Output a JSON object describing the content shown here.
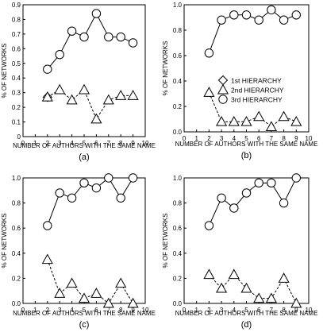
{
  "chart_data": [
    {
      "type": "line",
      "panel_label": "(a)",
      "xlabel": "NUMBER OF AUTHORS WITH THE SAME NAME",
      "ylabel": "% OF NETWORKS",
      "xlim": [
        0,
        10
      ],
      "ylim": [
        0,
        0.9
      ],
      "xticks": [
        0,
        1,
        2,
        3,
        4,
        5,
        6,
        7,
        8,
        9,
        10
      ],
      "yticks": [
        0,
        0.1,
        0.2,
        0.3,
        0.4,
        0.5,
        0.6,
        0.7,
        0.8,
        0.9
      ],
      "ytick_labels": [
        "0",
        "0.1",
        "0.2",
        "0.3",
        "0.4",
        "0.5",
        "0.6",
        "0.7",
        "0.8",
        "0.9"
      ],
      "series": [
        {
          "marker": "diamond",
          "line": "none",
          "x": [
            2
          ],
          "y": [
            0.27
          ]
        },
        {
          "marker": "triangle",
          "line": "dashed",
          "x": [
            2,
            3,
            4,
            5,
            6,
            7,
            8,
            9
          ],
          "y": [
            0.27,
            0.32,
            0.25,
            0.32,
            0.12,
            0.25,
            0.28,
            0.28
          ]
        },
        {
          "marker": "circle",
          "line": "solid",
          "x": [
            2,
            3,
            4,
            5,
            6,
            7,
            8,
            9
          ],
          "y": [
            0.46,
            0.56,
            0.72,
            0.68,
            0.84,
            0.68,
            0.68,
            0.64
          ]
        }
      ]
    },
    {
      "type": "line",
      "panel_label": "(b)",
      "xlabel": "NUMBER OF AUTHORS WITH THE SAME NAME",
      "ylabel": "% OF NETWORKS",
      "xlim": [
        0,
        10
      ],
      "ylim": [
        0,
        1.0
      ],
      "xticks": [
        0,
        1,
        2,
        3,
        4,
        5,
        6,
        7,
        8,
        9,
        10
      ],
      "yticks": [
        0,
        0.2,
        0.4,
        0.6,
        0.8,
        1.0
      ],
      "ytick_labels": [
        "0.0",
        "0.2",
        "0.4",
        "0.6",
        "0.8",
        "1.0"
      ],
      "legend": {
        "placement": "middle-right",
        "entries": [
          {
            "marker": "diamond",
            "label": "1st HIERARCHY"
          },
          {
            "marker": "triangle",
            "label": "2nd HIERARCHY"
          },
          {
            "marker": "circle",
            "label": "3rd HIERARCHY"
          }
        ]
      },
      "series": [
        {
          "marker": "diamond",
          "line": "none",
          "x": [],
          "y": []
        },
        {
          "marker": "triangle",
          "line": "dashed",
          "x": [
            2,
            3,
            4,
            5,
            6,
            7,
            8,
            9
          ],
          "y": [
            0.31,
            0.08,
            0.08,
            0.08,
            0.12,
            0.04,
            0.12,
            0.08
          ]
        },
        {
          "marker": "circle",
          "line": "solid",
          "x": [
            2,
            3,
            4,
            5,
            6,
            7,
            8,
            9
          ],
          "y": [
            0.62,
            0.88,
            0.92,
            0.92,
            0.88,
            0.96,
            0.88,
            0.92
          ]
        }
      ]
    },
    {
      "type": "line",
      "panel_label": "(c)",
      "xlabel": "NUMBER OF AUTHORS WITH THE SAME NAME",
      "ylabel": "% OF NETWORKS",
      "xlim": [
        0,
        10
      ],
      "ylim": [
        0,
        1.0
      ],
      "xticks": [
        0,
        1,
        2,
        3,
        4,
        5,
        6,
        7,
        8,
        9,
        10
      ],
      "yticks": [
        0,
        0.2,
        0.4,
        0.6,
        0.8,
        1.0
      ],
      "ytick_labels": [
        "0.0",
        "0.2",
        "0.4",
        "0.6",
        "0.8",
        "1.0"
      ],
      "series": [
        {
          "marker": "diamond",
          "line": "none",
          "x": [],
          "y": []
        },
        {
          "marker": "triangle",
          "line": "dashed",
          "x": [
            2,
            3,
            4,
            5,
            6,
            7,
            8,
            9
          ],
          "y": [
            0.35,
            0.08,
            0.16,
            0.04,
            0.08,
            0.0,
            0.16,
            0.0
          ]
        },
        {
          "marker": "circle",
          "line": "solid",
          "x": [
            2,
            3,
            4,
            5,
            6,
            7,
            8,
            9
          ],
          "y": [
            0.62,
            0.88,
            0.84,
            0.96,
            0.92,
            1.0,
            0.84,
            1.0
          ]
        }
      ]
    },
    {
      "type": "line",
      "panel_label": "(d)",
      "xlabel": "NUMBER OF AUTHORS WITH THE SAME NAME",
      "ylabel": "% OF NETWORKS",
      "xlim": [
        0,
        10
      ],
      "ylim": [
        0,
        1.0
      ],
      "xticks": [
        0,
        1,
        2,
        3,
        4,
        5,
        6,
        7,
        8,
        9,
        10
      ],
      "yticks": [
        0,
        0.2,
        0.4,
        0.6,
        0.8,
        1.0
      ],
      "ytick_labels": [
        "0.0",
        "0.2",
        "0.4",
        "0.6",
        "0.8",
        "1.0"
      ],
      "series": [
        {
          "marker": "diamond",
          "line": "none",
          "x": [],
          "y": []
        },
        {
          "marker": "triangle",
          "line": "dashed",
          "x": [
            2,
            3,
            4,
            5,
            6,
            7,
            8,
            9
          ],
          "y": [
            0.23,
            0.12,
            0.23,
            0.12,
            0.04,
            0.04,
            0.2,
            0.0
          ]
        },
        {
          "marker": "circle",
          "line": "solid",
          "x": [
            2,
            3,
            4,
            5,
            6,
            7,
            8,
            9
          ],
          "y": [
            0.62,
            0.84,
            0.76,
            0.88,
            0.96,
            0.96,
            0.8,
            1.0
          ]
        }
      ]
    }
  ]
}
